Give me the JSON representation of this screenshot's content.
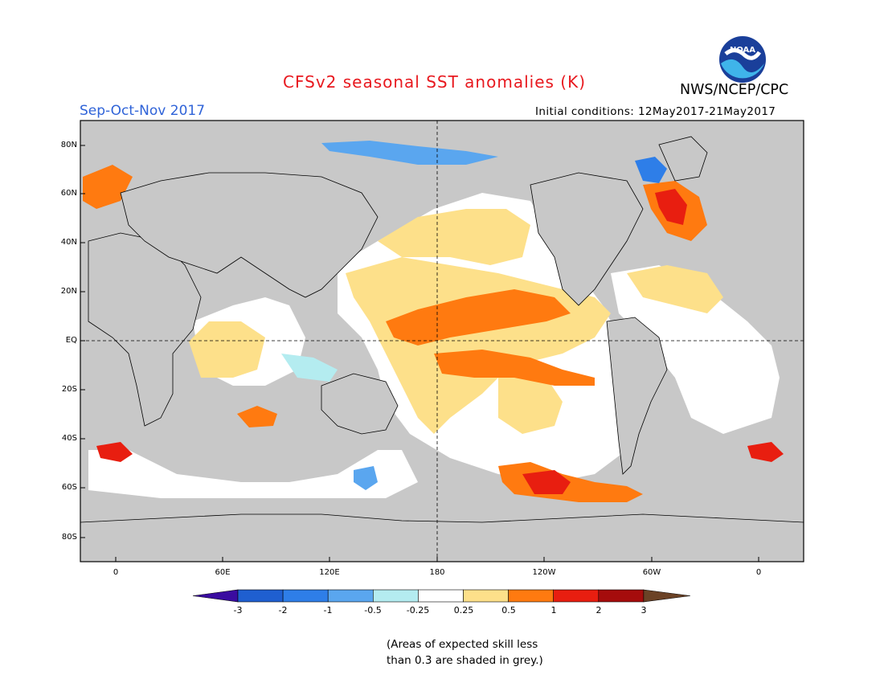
{
  "header": {
    "title": "CFSv2 seasonal SST anomalies (K)",
    "season": "Sep-Oct-Nov 2017",
    "initial_conditions": "Initial conditions: 12May2017-21May2017",
    "agency": "NWS/NCEP/CPC",
    "logo_text": "NOAA"
  },
  "map": {
    "lat_labels": [
      "80N",
      "60N",
      "40N",
      "20N",
      "EQ",
      "20S",
      "40S",
      "60S",
      "80S"
    ],
    "lon_labels": [
      "0",
      "60E",
      "120E",
      "180",
      "120W",
      "60W",
      "0"
    ],
    "land_color": "#c8c8c8",
    "ocean_low_skill_color": "#c8c8c8"
  },
  "legend": {
    "labels": [
      "-3",
      "-2",
      "-1",
      "-0.5",
      "-0.25",
      "0.25",
      "0.5",
      "1",
      "2",
      "3"
    ],
    "colors": [
      "#3a0ca0",
      "#1f5fd0",
      "#2e7ee8",
      "#5aa6ef",
      "#b4ecf0",
      "#ffffff",
      "#fde08a",
      "#ff7a10",
      "#e81e10",
      "#a50c0c",
      "#6b4226"
    ]
  },
  "note": {
    "line1": "(Areas of expected skill less",
    "line2": "than 0.3 are shaded in grey.)"
  }
}
